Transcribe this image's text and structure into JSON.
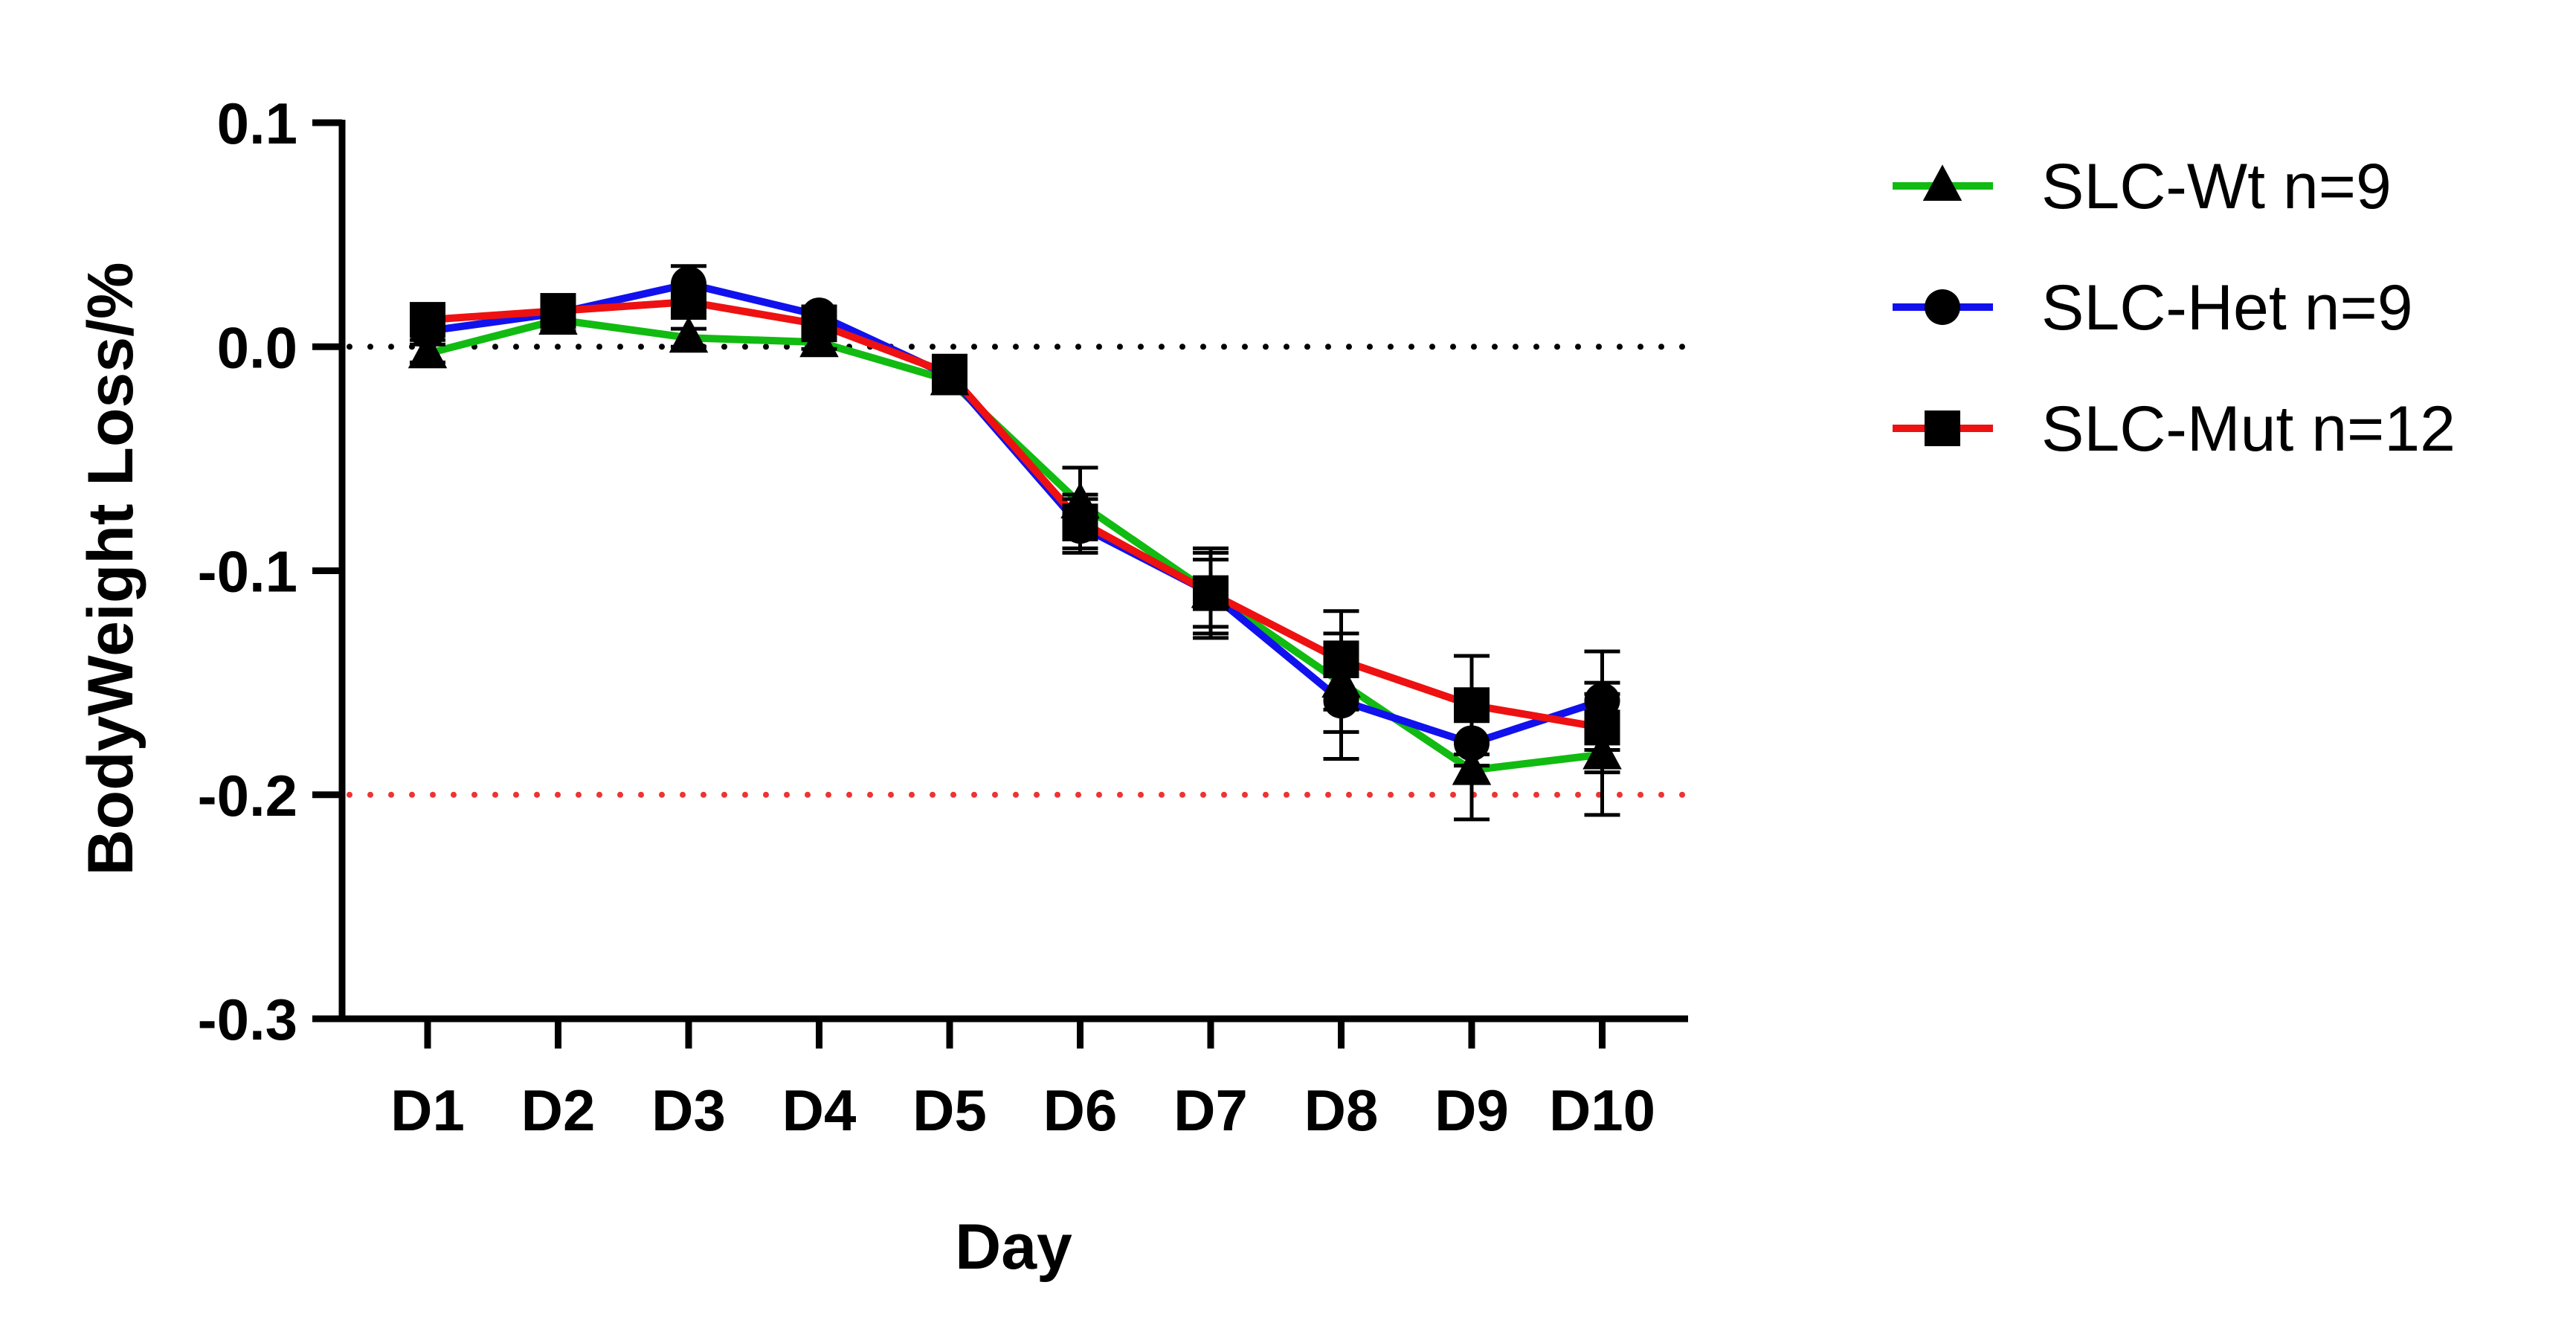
{
  "chart_data": {
    "type": "line",
    "title": "",
    "xlabel": "Day",
    "ylabel": "BodyWeight Loss/%",
    "categories": [
      "D1",
      "D2",
      "D3",
      "D4",
      "D5",
      "D6",
      "D7",
      "D8",
      "D9",
      "D10"
    ],
    "ylim": [
      -0.3,
      0.1
    ],
    "yticks": [
      0.1,
      0.0,
      -0.1,
      -0.2,
      -0.3
    ],
    "ytick_labels": [
      "0.1",
      "0.0",
      "-0.1",
      "-0.2",
      "-0.3"
    ],
    "grid": false,
    "legend_position": "top-right",
    "reference_lines": [
      {
        "y": 0.0,
        "color": "#000000",
        "style": "dotted"
      },
      {
        "y": -0.2,
        "color": "#ee3333",
        "style": "dotted"
      }
    ],
    "series": [
      {
        "name": "SLC-Wt n=9",
        "color": "#11bb11",
        "marker": "triangle",
        "values": [
          -0.003,
          0.012,
          0.004,
          0.002,
          -0.015,
          -0.07,
          -0.11,
          -0.15,
          -0.189,
          -0.182
        ],
        "errors": [
          0.004,
          0.005,
          0.004,
          0.003,
          0.004,
          0.016,
          0.018,
          0.022,
          0.022,
          0.027
        ]
      },
      {
        "name": "SLC-Het n=9",
        "color": "#1111ee",
        "marker": "circle",
        "values": [
          0.007,
          0.015,
          0.028,
          0.014,
          -0.013,
          -0.08,
          -0.11,
          -0.158,
          -0.177,
          -0.158
        ],
        "errors": [
          0.004,
          0.004,
          0.008,
          0.004,
          0.006,
          0.012,
          0.02,
          0.026,
          0.01,
          0.022
        ]
      },
      {
        "name": "SLC-Mut n=12",
        "color": "#ee1111",
        "marker": "square",
        "values": [
          0.012,
          0.016,
          0.02,
          0.01,
          -0.012,
          -0.078,
          -0.11,
          -0.14,
          -0.16,
          -0.17
        ],
        "errors": [
          0.004,
          0.004,
          0.007,
          0.005,
          0.008,
          0.012,
          0.015,
          0.022,
          0.022,
          0.02
        ]
      }
    ]
  }
}
